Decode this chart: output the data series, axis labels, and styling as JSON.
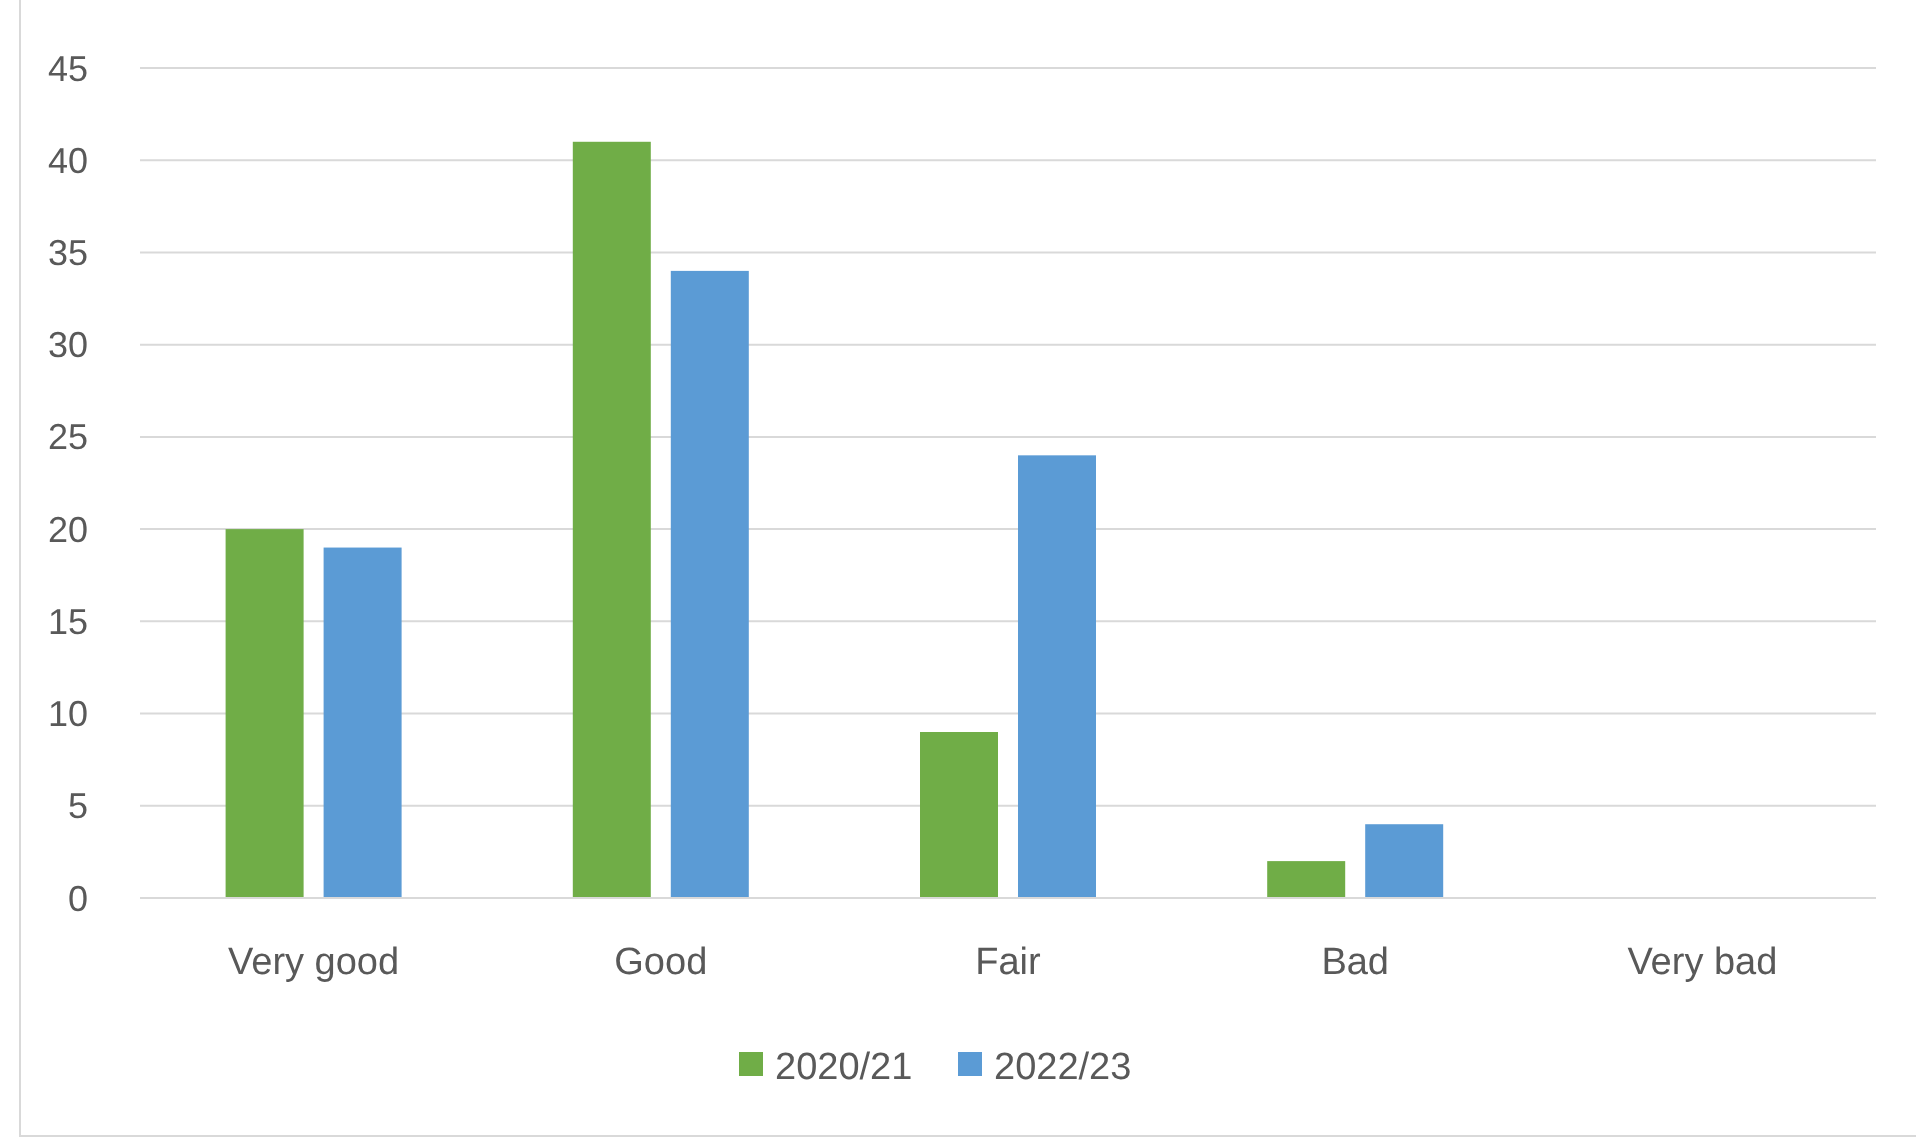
{
  "chart_data": {
    "type": "bar",
    "categories": [
      "Very good",
      "Good",
      "Fair",
      "Bad",
      "Very bad"
    ],
    "series": [
      {
        "name": "2020/21",
        "color": "#70ad47",
        "values": [
          20,
          41,
          9,
          2,
          0
        ]
      },
      {
        "name": "2022/23",
        "color": "#5b9bd5",
        "values": [
          19,
          34,
          24,
          4,
          0
        ]
      }
    ],
    "ylim": [
      0,
      45
    ],
    "yticks": [
      0,
      5,
      10,
      15,
      20,
      25,
      30,
      35,
      40,
      45
    ],
    "grid": "y",
    "legend": "bottom"
  }
}
